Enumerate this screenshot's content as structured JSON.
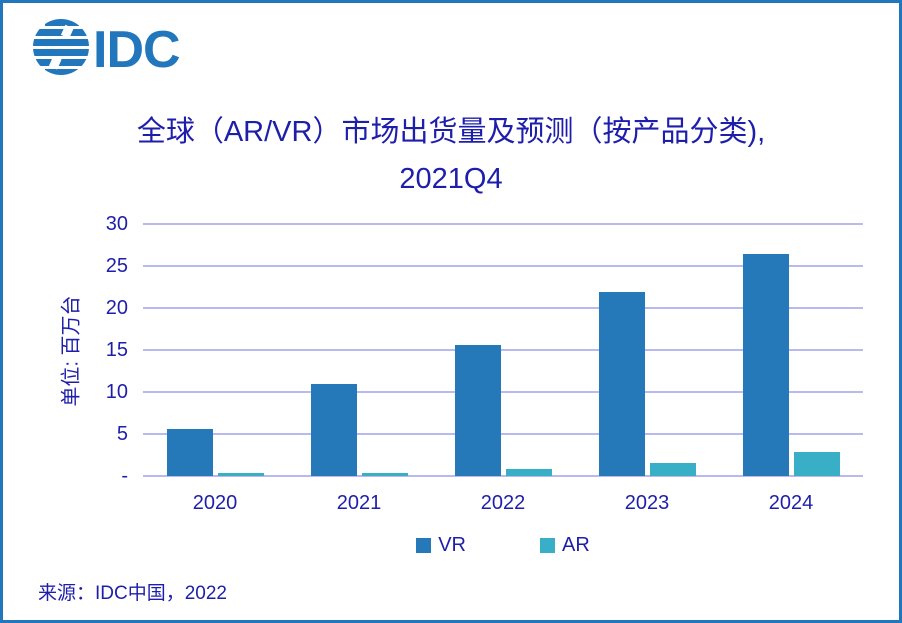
{
  "brand": {
    "name": "IDC"
  },
  "logo": {
    "text": "IDC"
  },
  "title": {
    "line1": "全球（AR/VR）市场出货量及预测（按产品分类),",
    "line2": "2021Q4"
  },
  "colors": {
    "brand_blue": "#2176BC",
    "text_navy": "#1E1EAC",
    "gridline": "#B8B9F1",
    "vr_bar": "#2579B9",
    "ar_bar": "#39AFC7",
    "background": "#FFFFFF"
  },
  "chart_data": {
    "type": "bar",
    "title": "全球（AR/VR）市场出货量及预测（按产品分类), 2021Q4",
    "categories": [
      "2020",
      "2021",
      "2022",
      "2023",
      "2024"
    ],
    "series": [
      {
        "name": "VR",
        "color": "#2579B9",
        "values": [
          5.6,
          11.0,
          15.6,
          21.9,
          26.4
        ]
      },
      {
        "name": "AR",
        "color": "#39AFC7",
        "values": [
          0.3,
          0.3,
          0.8,
          1.5,
          2.9
        ]
      }
    ],
    "xlabel": "",
    "ylabel": "单位: 百万台",
    "ylim": [
      0,
      30
    ],
    "ytick_values": [
      0,
      5,
      10,
      15,
      20,
      25,
      30
    ],
    "ytick_labels": [
      "-",
      "5",
      "10",
      "15",
      "20",
      "25",
      "30"
    ],
    "grid": true,
    "legend_position": "bottom"
  },
  "source": {
    "text": "来源：IDC中国，2022"
  }
}
